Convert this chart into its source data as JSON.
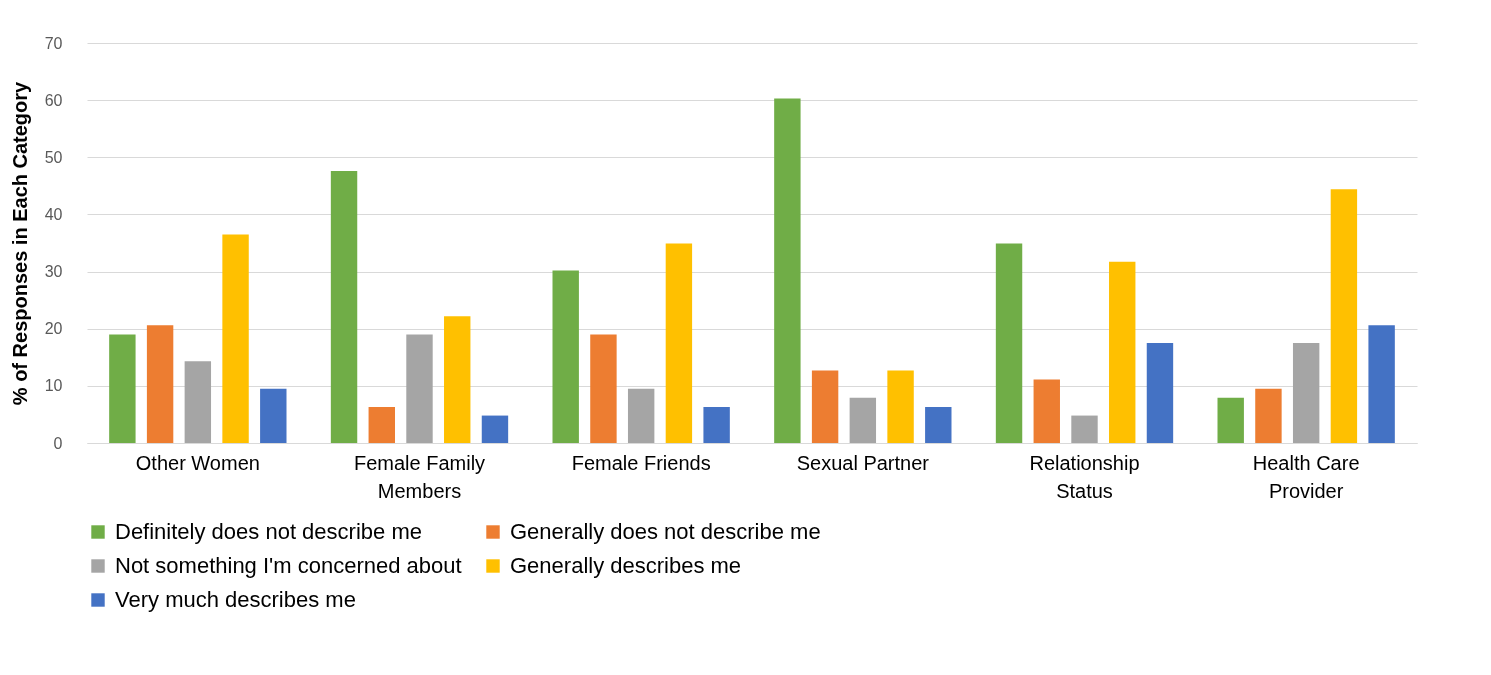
{
  "chart_data": {
    "type": "bar",
    "ylabel": "% of Responses in Each Category",
    "categories": [
      "Other Women",
      "Female Family Members",
      "Female Friends",
      "Sexual Partner",
      "Relationship Status",
      "Health Care Provider"
    ],
    "series": [
      {
        "name": "Definitely does not describe me",
        "color": "#70ad47",
        "values": [
          19.0,
          47.6,
          30.2,
          60.3,
          34.9,
          7.9
        ]
      },
      {
        "name": "Generally does not describe me",
        "color": "#ed7d31",
        "values": [
          20.6,
          6.3,
          19.0,
          12.7,
          11.1,
          9.5
        ]
      },
      {
        "name": "Not something I'm concerned about",
        "color": "#a5a5a5",
        "values": [
          14.3,
          19.0,
          9.5,
          7.9,
          4.8,
          17.5
        ]
      },
      {
        "name": "Generally describes me",
        "color": "#ffc000",
        "values": [
          36.5,
          22.2,
          34.9,
          12.7,
          31.7,
          44.4
        ]
      },
      {
        "name": "Very much describes me",
        "color": "#4472c4",
        "values": [
          9.5,
          4.8,
          6.3,
          6.3,
          17.5,
          20.6
        ]
      }
    ],
    "ylim": [
      0,
      70
    ],
    "yticks": [
      0,
      10,
      20,
      30,
      40,
      50,
      60,
      70
    ],
    "grid": "y",
    "legend": "bottom"
  }
}
